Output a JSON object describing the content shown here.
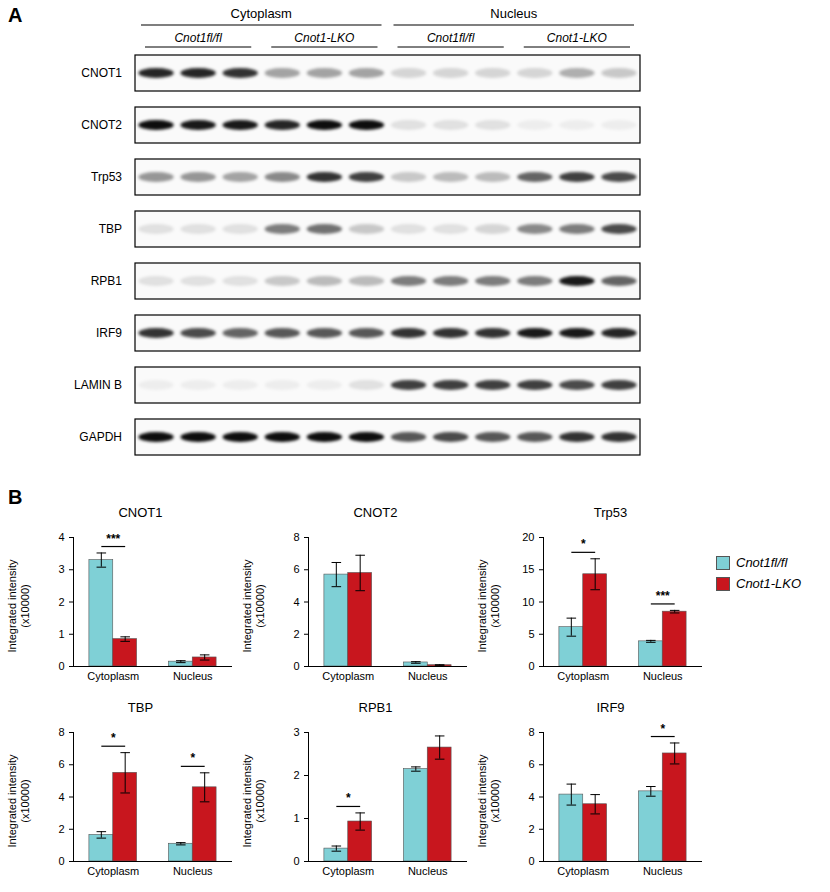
{
  "blot": {
    "panel": "A",
    "fractions": [
      {
        "label": "Cytoplasm",
        "groups": [
          "Cnot1fl/fl",
          "Cnot1-LKO"
        ]
      },
      {
        "label": "Nucleus",
        "groups": [
          "Cnot1fl/fl",
          "Cnot1-LKO"
        ]
      }
    ],
    "rows": [
      {
        "label": "CNOT1",
        "bands": [
          0.85,
          0.85,
          0.8,
          0.35,
          0.35,
          0.35,
          0.15,
          0.15,
          0.15,
          0.15,
          0.3,
          0.2
        ]
      },
      {
        "label": "CNOT2",
        "bands": [
          0.95,
          0.9,
          0.9,
          0.85,
          0.95,
          0.95,
          0.1,
          0.1,
          0.1,
          0.05,
          0.05,
          0.05
        ]
      },
      {
        "label": "Trp53",
        "bands": [
          0.4,
          0.4,
          0.35,
          0.45,
          0.8,
          0.75,
          0.2,
          0.25,
          0.25,
          0.6,
          0.75,
          0.7
        ]
      },
      {
        "label": "TBP",
        "bands": [
          0.1,
          0.1,
          0.1,
          0.5,
          0.55,
          0.2,
          0.1,
          0.1,
          0.15,
          0.45,
          0.5,
          0.7
        ]
      },
      {
        "label": "RPB1",
        "bands": [
          0.1,
          0.1,
          0.1,
          0.2,
          0.25,
          0.25,
          0.5,
          0.5,
          0.5,
          0.5,
          0.9,
          0.6
        ]
      },
      {
        "label": "IRF9",
        "bands": [
          0.8,
          0.7,
          0.6,
          0.65,
          0.65,
          0.65,
          0.8,
          0.8,
          0.8,
          0.9,
          0.9,
          0.85
        ]
      },
      {
        "label": "LAMIN B",
        "bands": [
          0.05,
          0.05,
          0.05,
          0.05,
          0.05,
          0.1,
          0.75,
          0.75,
          0.75,
          0.75,
          0.7,
          0.75
        ]
      },
      {
        "label": "GAPDH",
        "bands": [
          0.95,
          0.95,
          0.95,
          0.95,
          0.95,
          0.95,
          0.65,
          0.7,
          0.65,
          0.65,
          0.8,
          0.8
        ]
      }
    ]
  },
  "chart_panel": "B",
  "chart_data": [
    {
      "type": "bar",
      "title": "CNOT1",
      "y_label": "Integrated intensity\n(x10000)",
      "categories": [
        "Cytoplasm",
        "Nucleus"
      ],
      "series": [
        {
          "name": "Cnot1fl/fl",
          "color": "#7fd0d6",
          "values": [
            3.3,
            0.15
          ],
          "errors": [
            0.22,
            0.03
          ]
        },
        {
          "name": "Cnot1-LKO",
          "color": "#c8161e",
          "values": [
            0.85,
            0.28
          ],
          "errors": [
            0.07,
            0.08
          ]
        }
      ],
      "ylim": [
        0,
        4
      ],
      "yticks": [
        0,
        1,
        2,
        3,
        4
      ],
      "annotations": [
        {
          "category": "Cytoplasm",
          "text": "***"
        }
      ]
    },
    {
      "type": "bar",
      "title": "CNOT2",
      "y_label": "Integrated intensity\n(x10000)",
      "categories": [
        "Cytoplasm",
        "Nucleus"
      ],
      "series": [
        {
          "name": "Cnot1fl/fl",
          "color": "#7fd0d6",
          "values": [
            5.7,
            0.25
          ],
          "errors": [
            0.75,
            0.05
          ]
        },
        {
          "name": "Cnot1-LKO",
          "color": "#c8161e",
          "values": [
            5.8,
            0.08
          ],
          "errors": [
            1.1,
            0.03
          ]
        }
      ],
      "ylim": [
        0,
        8
      ],
      "yticks": [
        0,
        2,
        4,
        6,
        8
      ],
      "annotations": []
    },
    {
      "type": "bar",
      "title": "Trp53",
      "y_label": "Integrated intensity\n(x10000)",
      "categories": [
        "Cytoplasm",
        "Nucleus"
      ],
      "series": [
        {
          "name": "Cnot1fl/fl",
          "color": "#7fd0d6",
          "values": [
            6.1,
            3.9
          ],
          "errors": [
            1.4,
            0.15
          ]
        },
        {
          "name": "Cnot1-LKO",
          "color": "#c8161e",
          "values": [
            14.3,
            8.5
          ],
          "errors": [
            2.4,
            0.2
          ]
        }
      ],
      "ylim": [
        0,
        20
      ],
      "yticks": [
        0,
        5,
        10,
        15,
        20
      ],
      "annotations": [
        {
          "category": "Cytoplasm",
          "text": "*"
        },
        {
          "category": "Nucleus",
          "text": "***"
        }
      ],
      "legend": "right"
    },
    {
      "type": "bar",
      "title": "TBP",
      "y_label": "Integrated intensity\n(x10000)",
      "categories": [
        "Cytoplasm",
        "Nucleus"
      ],
      "series": [
        {
          "name": "Cnot1fl/fl",
          "color": "#7fd0d6",
          "values": [
            1.65,
            1.1
          ],
          "errors": [
            0.2,
            0.07
          ]
        },
        {
          "name": "Cnot1-LKO",
          "color": "#c8161e",
          "values": [
            5.5,
            4.6
          ],
          "errors": [
            1.25,
            0.9
          ]
        }
      ],
      "ylim": [
        0,
        8
      ],
      "yticks": [
        0,
        2,
        4,
        6,
        8
      ],
      "annotations": [
        {
          "category": "Cytoplasm",
          "text": "*"
        },
        {
          "category": "Nucleus",
          "text": "*"
        }
      ]
    },
    {
      "type": "bar",
      "title": "RPB1",
      "y_label": "Integrated intensity\n(x10000)",
      "categories": [
        "Cytoplasm",
        "Nucleus"
      ],
      "series": [
        {
          "name": "Cnot1fl/fl",
          "color": "#7fd0d6",
          "values": [
            0.3,
            2.15
          ],
          "errors": [
            0.06,
            0.05
          ]
        },
        {
          "name": "Cnot1-LKO",
          "color": "#c8161e",
          "values": [
            0.93,
            2.65
          ],
          "errors": [
            0.2,
            0.27
          ]
        }
      ],
      "ylim": [
        0,
        3
      ],
      "yticks": [
        0,
        1,
        2,
        3
      ],
      "annotations": [
        {
          "category": "Cytoplasm",
          "text": "*"
        }
      ]
    },
    {
      "type": "bar",
      "title": "IRF9",
      "y_label": "Integrated intensity\n(x10000)",
      "categories": [
        "Cytoplasm",
        "Nucleus"
      ],
      "series": [
        {
          "name": "Cnot1fl/fl",
          "color": "#7fd0d6",
          "values": [
            4.15,
            4.35
          ],
          "errors": [
            0.65,
            0.3
          ]
        },
        {
          "name": "Cnot1-LKO",
          "color": "#c8161e",
          "values": [
            3.55,
            6.7
          ],
          "errors": [
            0.6,
            0.65
          ]
        }
      ],
      "ylim": [
        0,
        8
      ],
      "yticks": [
        0,
        2,
        4,
        6,
        8
      ],
      "annotations": [
        {
          "category": "Nucleus",
          "text": "*"
        }
      ]
    }
  ]
}
